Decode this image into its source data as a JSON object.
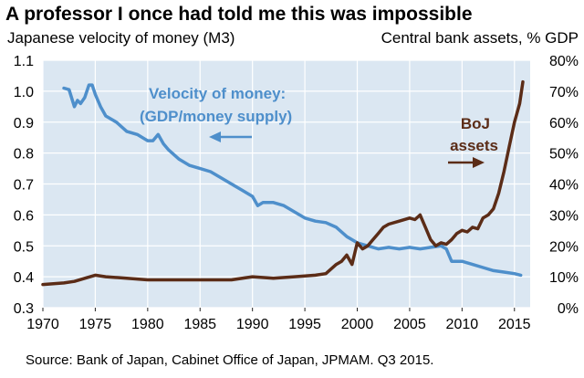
{
  "chart_data": {
    "type": "line",
    "title": "A professor I once had told me this was impossible",
    "left_axis_label": "Japanese velocity of money (M3)",
    "right_axis_label": "Central bank assets, % GDP",
    "source": "Source: Bank of Japan, Cabinet Office of Japan, JPMAM. Q3 2015.",
    "x_ticks": [
      "1970",
      "1975",
      "1980",
      "1985",
      "1990",
      "1995",
      "2000",
      "2005",
      "2010",
      "2015"
    ],
    "y_left_ticks": [
      "0.3",
      "0.4",
      "0.5",
      "0.6",
      "0.7",
      "0.8",
      "0.9",
      "1.0",
      "1.1"
    ],
    "y_right_ticks": [
      "0%",
      "10%",
      "20%",
      "30%",
      "40%",
      "50%",
      "60%",
      "70%",
      "80%"
    ],
    "xlim": [
      1970,
      2016.5
    ],
    "ylim_left": [
      0.3,
      1.1
    ],
    "ylim_right": [
      0,
      80
    ],
    "grid": true,
    "background": "#dbe7f2",
    "series": [
      {
        "name": "Velocity of money:\n(GDP/money supply)",
        "label_lines": [
          "Velocity of money:",
          "(GDP/money supply)"
        ],
        "axis": "left",
        "color": "#4e8fcb",
        "x": [
          1972.0,
          1972.5,
          1973.0,
          1973.3,
          1973.6,
          1974.0,
          1974.4,
          1974.7,
          1975.0,
          1975.5,
          1976.0,
          1977.0,
          1978.0,
          1979.0,
          1980.0,
          1980.5,
          1981.0,
          1981.5,
          1982.0,
          1983.0,
          1984.0,
          1985.0,
          1986.0,
          1987.0,
          1988.0,
          1989.0,
          1990.0,
          1990.5,
          1991.0,
          1992.0,
          1993.0,
          1994.0,
          1995.0,
          1996.0,
          1997.0,
          1998.0,
          1999.0,
          2000.0,
          2001.0,
          2002.0,
          2003.0,
          2004.0,
          2005.0,
          2006.0,
          2007.0,
          2008.0,
          2008.5,
          2009.0,
          2010.0,
          2011.0,
          2012.0,
          2013.0,
          2014.0,
          2015.0,
          2015.6
        ],
        "y": [
          1.01,
          1.005,
          0.95,
          0.97,
          0.96,
          0.98,
          1.02,
          1.02,
          0.99,
          0.95,
          0.92,
          0.9,
          0.87,
          0.86,
          0.84,
          0.84,
          0.86,
          0.83,
          0.81,
          0.78,
          0.76,
          0.75,
          0.74,
          0.72,
          0.7,
          0.68,
          0.66,
          0.63,
          0.64,
          0.64,
          0.63,
          0.61,
          0.59,
          0.58,
          0.575,
          0.56,
          0.53,
          0.51,
          0.5,
          0.49,
          0.495,
          0.49,
          0.495,
          0.49,
          0.495,
          0.5,
          0.49,
          0.45,
          0.45,
          0.44,
          0.43,
          0.42,
          0.415,
          0.41,
          0.405
        ]
      },
      {
        "name": "BoJ\nassets",
        "label_lines": [
          "BoJ",
          "assets"
        ],
        "axis": "right",
        "color": "#5b2c17",
        "x": [
          1970.0,
          1972.0,
          1973.0,
          1974.0,
          1975.0,
          1976.0,
          1978.0,
          1980.0,
          1985.0,
          1988.0,
          1990.0,
          1992.0,
          1994.0,
          1996.0,
          1997.0,
          1998.0,
          1998.5,
          1999.0,
          1999.5,
          2000.0,
          2000.5,
          2001.0,
          2001.5,
          2002.0,
          2002.5,
          2003.0,
          2004.0,
          2005.0,
          2005.5,
          2006.0,
          2006.5,
          2007.0,
          2007.5,
          2008.0,
          2008.5,
          2009.0,
          2009.5,
          2010.0,
          2010.5,
          2011.0,
          2011.5,
          2012.0,
          2012.5,
          2013.0,
          2013.5,
          2014.0,
          2014.5,
          2015.0,
          2015.5,
          2015.8
        ],
        "y": [
          7.5,
          8.0,
          8.5,
          9.5,
          10.5,
          10.0,
          9.5,
          9.0,
          9.0,
          9.0,
          10.0,
          9.5,
          10.0,
          10.5,
          11.0,
          14.0,
          15.0,
          17.0,
          14.0,
          21.0,
          19.0,
          20.0,
          22.0,
          24.0,
          26.0,
          27.0,
          28.0,
          29.0,
          28.5,
          30.0,
          26.0,
          22.0,
          20.0,
          21.0,
          20.5,
          22.0,
          24.0,
          25.0,
          24.5,
          26.0,
          25.5,
          29.0,
          30.0,
          32.0,
          37.0,
          44.0,
          52.0,
          60.0,
          66.0,
          73.0
        ]
      }
    ]
  }
}
